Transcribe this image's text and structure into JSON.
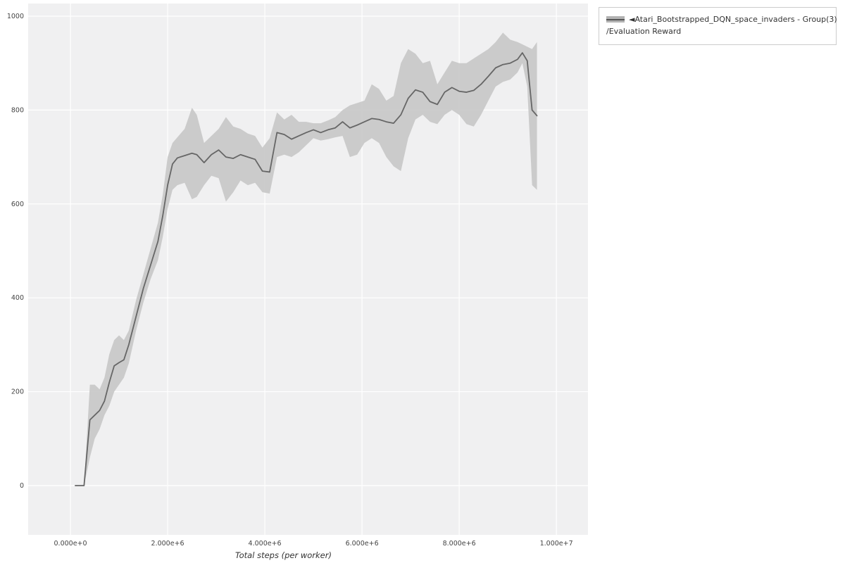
{
  "legend": {
    "line1": "◄Atari_Bootstrapped_DQN_space_invaders - Group(3)",
    "line2": "/Evaluation Reward"
  },
  "chart_data": {
    "type": "line",
    "title": "",
    "xlabel": "Total steps (per worker)",
    "ylabel": "",
    "legend_entries": [
      "◄Atari_Bootstrapped_DQN_space_invaders - Group(3) /Evaluation Reward"
    ],
    "legend_position": "top-right-outside",
    "grid": true,
    "xlim": [
      -870000,
      10650000
    ],
    "ylim": [
      -105,
      1027
    ],
    "x_ticks": {
      "values": [
        0,
        2000000,
        4000000,
        6000000,
        8000000,
        10000000
      ],
      "labels": [
        "0.000e+0",
        "2.000e+6",
        "4.000e+6",
        "6.000e+6",
        "8.000e+6",
        "1.000e+7"
      ]
    },
    "y_ticks": {
      "values": [
        0,
        200,
        400,
        600,
        800,
        1000
      ],
      "labels": [
        "0",
        "200",
        "400",
        "600",
        "800",
        "1000"
      ]
    },
    "colors": {
      "line": "#666666",
      "band": "#c7c7c7",
      "plot_bg": "#f0f0f1",
      "grid": "#ffffff",
      "tick_text": "#444444",
      "axis_label": "#333333"
    },
    "series": [
      {
        "name": "Atari_Bootstrapped_DQN_space_invaders - Group(3)/Evaluation Reward",
        "x": [
          100000,
          280000,
          400000,
          500000,
          600000,
          700000,
          800000,
          900000,
          1000000,
          1100000,
          1200000,
          1350000,
          1500000,
          1650000,
          1800000,
          1900000,
          2000000,
          2100000,
          2200000,
          2350000,
          2500000,
          2600000,
          2750000,
          2900000,
          3050000,
          3200000,
          3350000,
          3500000,
          3650000,
          3800000,
          3950000,
          4100000,
          4250000,
          4400000,
          4550000,
          4700000,
          4850000,
          5000000,
          5150000,
          5300000,
          5450000,
          5600000,
          5750000,
          5900000,
          6050000,
          6200000,
          6350000,
          6500000,
          6650000,
          6800000,
          6950000,
          7100000,
          7250000,
          7400000,
          7550000,
          7700000,
          7850000,
          8000000,
          8150000,
          8300000,
          8450000,
          8600000,
          8750000,
          8900000,
          9050000,
          9200000,
          9300000,
          9400000,
          9500000,
          9600000
        ],
        "mean": [
          0,
          0,
          140,
          150,
          160,
          180,
          220,
          255,
          262,
          268,
          300,
          360,
          420,
          470,
          520,
          575,
          640,
          685,
          698,
          703,
          708,
          705,
          688,
          705,
          715,
          700,
          697,
          705,
          700,
          695,
          670,
          668,
          752,
          748,
          738,
          745,
          752,
          758,
          752,
          758,
          762,
          775,
          762,
          768,
          775,
          782,
          780,
          775,
          772,
          790,
          825,
          843,
          838,
          818,
          812,
          838,
          848,
          840,
          838,
          842,
          855,
          872,
          890,
          897,
          900,
          908,
          922,
          905,
          800,
          788
        ],
        "lower": [
          0,
          0,
          60,
          100,
          120,
          150,
          170,
          200,
          215,
          230,
          260,
          330,
          390,
          440,
          480,
          530,
          590,
          630,
          640,
          645,
          610,
          615,
          640,
          660,
          655,
          605,
          625,
          650,
          640,
          645,
          625,
          622,
          700,
          705,
          700,
          710,
          725,
          740,
          735,
          738,
          742,
          745,
          700,
          705,
          730,
          740,
          730,
          700,
          680,
          670,
          740,
          780,
          790,
          775,
          770,
          790,
          800,
          790,
          770,
          765,
          790,
          820,
          850,
          860,
          865,
          880,
          900,
          850,
          640,
          630
        ],
        "upper": [
          0,
          0,
          215,
          215,
          205,
          230,
          280,
          310,
          320,
          310,
          330,
          395,
          450,
          505,
          560,
          620,
          700,
          730,
          742,
          760,
          805,
          790,
          730,
          745,
          760,
          785,
          765,
          760,
          750,
          745,
          720,
          740,
          795,
          780,
          790,
          775,
          775,
          772,
          772,
          778,
          785,
          800,
          810,
          815,
          820,
          855,
          845,
          820,
          830,
          900,
          930,
          920,
          900,
          905,
          855,
          880,
          905,
          900,
          900,
          910,
          920,
          930,
          945,
          965,
          950,
          945,
          940,
          935,
          930,
          945
        ]
      }
    ]
  }
}
